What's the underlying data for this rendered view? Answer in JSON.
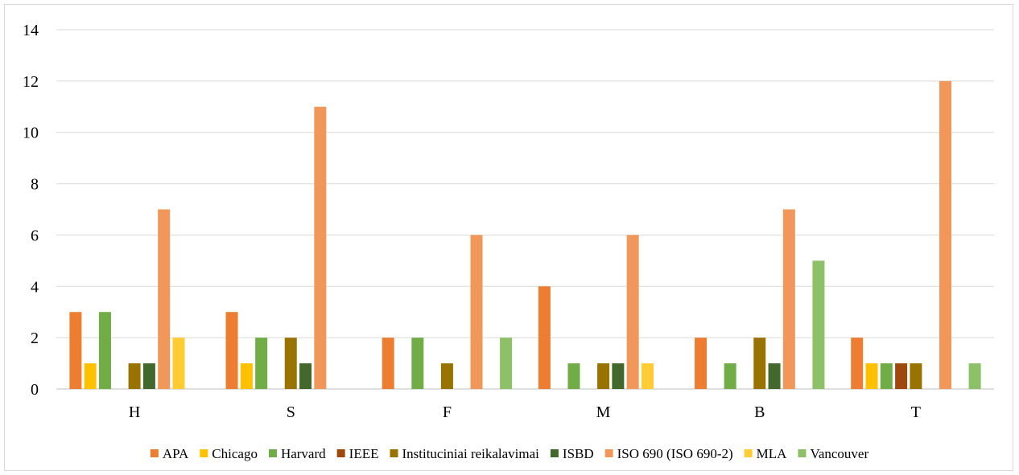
{
  "chart_data": {
    "type": "bar",
    "title": "",
    "xlabel": "",
    "ylabel": "",
    "ylim": [
      0,
      14
    ],
    "yticks": [
      0,
      2,
      4,
      6,
      8,
      10,
      12,
      14
    ],
    "grid": true,
    "legend_position": "bottom",
    "categories": [
      "H",
      "S",
      "F",
      "M",
      "B",
      "T"
    ],
    "series": [
      {
        "name": "APA",
        "color": "#ed7d31",
        "values": [
          3,
          3,
          2,
          4,
          2,
          2
        ]
      },
      {
        "name": "Chicago",
        "color": "#ffc000",
        "values": [
          1,
          1,
          0,
          0,
          0,
          1
        ]
      },
      {
        "name": "Harvard",
        "color": "#70ad47",
        "values": [
          3,
          2,
          2,
          1,
          1,
          1
        ]
      },
      {
        "name": "IEEE",
        "color": "#9e480e",
        "values": [
          0,
          0,
          0,
          0,
          0,
          1
        ]
      },
      {
        "name": "Instituciniai reikalavimai",
        "color": "#997300",
        "values": [
          1,
          2,
          1,
          1,
          2,
          1
        ]
      },
      {
        "name": "ISBD",
        "color": "#43682b",
        "values": [
          1,
          1,
          0,
          1,
          1,
          0
        ]
      },
      {
        "name": "ISO 690 (ISO 690-2)",
        "color": "#f1975a",
        "values": [
          7,
          11,
          6,
          6,
          7,
          12
        ]
      },
      {
        "name": "MLA",
        "color": "#ffcd33",
        "values": [
          2,
          0,
          0,
          1,
          0,
          0
        ]
      },
      {
        "name": "Vancouver",
        "color": "#8cc168",
        "values": [
          0,
          0,
          2,
          0,
          5,
          1
        ]
      }
    ]
  }
}
